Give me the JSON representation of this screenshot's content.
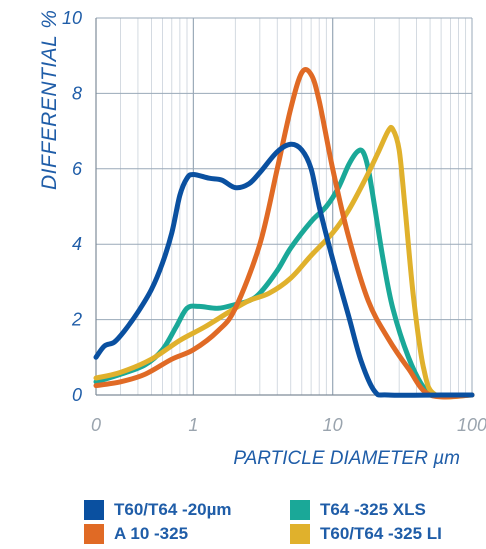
{
  "chart_data": {
    "type": "line",
    "xlabel": "PARTICLE DIAMETER µm",
    "ylabel": "DIFFERENTIAL %",
    "xscale": "log",
    "xlim": [
      0.2,
      100
    ],
    "ylim": [
      0,
      10
    ],
    "grid": true,
    "legend_position": "bottom",
    "x_ticks": [
      {
        "value": 0.2,
        "label": "0"
      },
      {
        "value": 1,
        "label": "1"
      },
      {
        "value": 10,
        "label": "10"
      },
      {
        "value": 100,
        "label": "100"
      }
    ],
    "y_ticks": [
      {
        "value": 0,
        "label": "0"
      },
      {
        "value": 2,
        "label": "2"
      },
      {
        "value": 4,
        "label": "4"
      },
      {
        "value": 6,
        "label": "6"
      },
      {
        "value": 8,
        "label": "8"
      },
      {
        "value": 10,
        "label": "10"
      }
    ],
    "series": [
      {
        "name": "T60/T64 -20µm",
        "color": "#0a50a0",
        "points": [
          [
            0.2,
            1.0
          ],
          [
            0.23,
            1.3
          ],
          [
            0.27,
            1.4
          ],
          [
            0.32,
            1.7
          ],
          [
            0.4,
            2.2
          ],
          [
            0.5,
            2.8
          ],
          [
            0.6,
            3.5
          ],
          [
            0.7,
            4.3
          ],
          [
            0.8,
            5.3
          ],
          [
            0.9,
            5.75
          ],
          [
            1.0,
            5.85
          ],
          [
            1.3,
            5.75
          ],
          [
            1.6,
            5.7
          ],
          [
            2.0,
            5.5
          ],
          [
            2.5,
            5.6
          ],
          [
            3.0,
            5.9
          ],
          [
            4.0,
            6.45
          ],
          [
            5.0,
            6.65
          ],
          [
            6.0,
            6.5
          ],
          [
            7.0,
            6.0
          ],
          [
            8.0,
            5.0
          ],
          [
            10.0,
            3.6
          ],
          [
            13.0,
            2.1
          ],
          [
            16.0,
            0.9
          ],
          [
            20.0,
            0.1
          ],
          [
            25.0,
            0.0
          ],
          [
            60.0,
            0.0
          ],
          [
            100.0,
            0.0
          ]
        ]
      },
      {
        "name": "A 10 -325",
        "color": "#e06a25",
        "points": [
          [
            0.2,
            0.25
          ],
          [
            0.3,
            0.35
          ],
          [
            0.45,
            0.55
          ],
          [
            0.7,
            0.95
          ],
          [
            1.0,
            1.2
          ],
          [
            1.5,
            1.7
          ],
          [
            2.0,
            2.3
          ],
          [
            3.0,
            4.0
          ],
          [
            4.0,
            6.0
          ],
          [
            5.0,
            7.6
          ],
          [
            6.0,
            8.55
          ],
          [
            7.0,
            8.5
          ],
          [
            8.0,
            7.8
          ],
          [
            10.0,
            6.0
          ],
          [
            13.0,
            4.2
          ],
          [
            18.0,
            2.5
          ],
          [
            25.0,
            1.5
          ],
          [
            35.0,
            0.7
          ],
          [
            50.0,
            0.0
          ],
          [
            100.0,
            0.0
          ]
        ]
      },
      {
        "name": "T64 -325 XLS",
        "color": "#1aa898",
        "points": [
          [
            0.2,
            0.35
          ],
          [
            0.3,
            0.55
          ],
          [
            0.45,
            0.8
          ],
          [
            0.6,
            1.2
          ],
          [
            0.75,
            1.8
          ],
          [
            0.9,
            2.3
          ],
          [
            1.1,
            2.35
          ],
          [
            1.5,
            2.3
          ],
          [
            2.0,
            2.4
          ],
          [
            2.5,
            2.5
          ],
          [
            3.0,
            2.7
          ],
          [
            4.0,
            3.3
          ],
          [
            5.0,
            3.9
          ],
          [
            7.0,
            4.6
          ],
          [
            9.0,
            5.0
          ],
          [
            11.0,
            5.5
          ],
          [
            13.0,
            6.1
          ],
          [
            15.0,
            6.45
          ],
          [
            16.5,
            6.45
          ],
          [
            18.0,
            6.0
          ],
          [
            20.0,
            5.0
          ],
          [
            23.0,
            3.6
          ],
          [
            27.0,
            2.3
          ],
          [
            35.0,
            1.0
          ],
          [
            45.0,
            0.2
          ],
          [
            55.0,
            0.0
          ],
          [
            100.0,
            0.0
          ]
        ]
      },
      {
        "name": "T60/T64 -325 LI",
        "color": "#e0b12c",
        "points": [
          [
            0.2,
            0.45
          ],
          [
            0.3,
            0.6
          ],
          [
            0.5,
            0.95
          ],
          [
            0.8,
            1.45
          ],
          [
            1.2,
            1.8
          ],
          [
            1.8,
            2.2
          ],
          [
            2.5,
            2.5
          ],
          [
            3.5,
            2.7
          ],
          [
            5.0,
            3.1
          ],
          [
            7.0,
            3.7
          ],
          [
            10.0,
            4.3
          ],
          [
            13.0,
            4.9
          ],
          [
            17.0,
            5.7
          ],
          [
            21.0,
            6.4
          ],
          [
            25.0,
            7.0
          ],
          [
            27.0,
            7.05
          ],
          [
            30.0,
            6.5
          ],
          [
            33.0,
            5.0
          ],
          [
            38.0,
            2.6
          ],
          [
            45.0,
            0.7
          ],
          [
            55.0,
            0.0
          ],
          [
            100.0,
            0.0
          ]
        ]
      }
    ]
  },
  "legend": {
    "items": [
      {
        "label": "T60/T64 -20µm",
        "color": "#0a50a0"
      },
      {
        "label": "T64 -325 XLS",
        "color": "#1aa898"
      },
      {
        "label": "A 10 -325",
        "color": "#e06a25"
      },
      {
        "label": "T60/T64 -325 LI",
        "color": "#e0b12c"
      }
    ]
  }
}
